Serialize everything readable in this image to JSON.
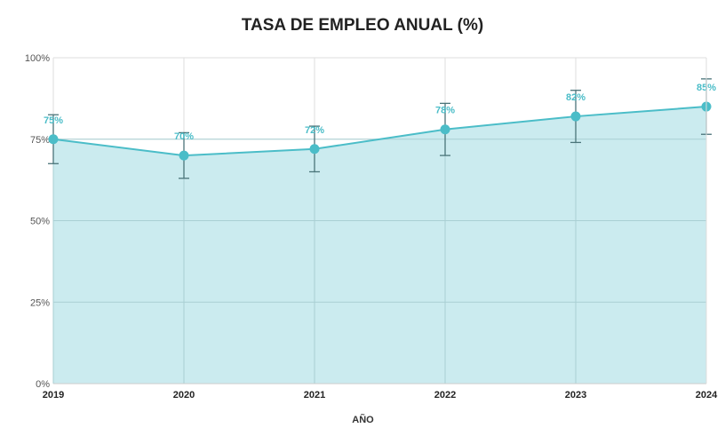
{
  "chart_data": {
    "type": "area",
    "title": "TASA DE EMPLEO ANUAL (%)",
    "xlabel": "AÑO",
    "ylabel": "",
    "categories": [
      "2019",
      "2020",
      "2021",
      "2022",
      "2023",
      "2024"
    ],
    "values": [
      75,
      70,
      72,
      78,
      82,
      85
    ],
    "data_labels": [
      "75%",
      "70%",
      "72%",
      "78%",
      "82%",
      "85%"
    ],
    "error": [
      7.5,
      7,
      7,
      8,
      8,
      8.5
    ],
    "ylim": [
      0,
      100
    ],
    "yticks": [
      0,
      25,
      50,
      75,
      100
    ],
    "ytick_labels": [
      "0%",
      "25%",
      "50%",
      "75%",
      "100%"
    ],
    "grid": true,
    "colors": {
      "line": "#4bbdc8",
      "fill": "#c8eaee",
      "error": "#4a7479"
    }
  }
}
